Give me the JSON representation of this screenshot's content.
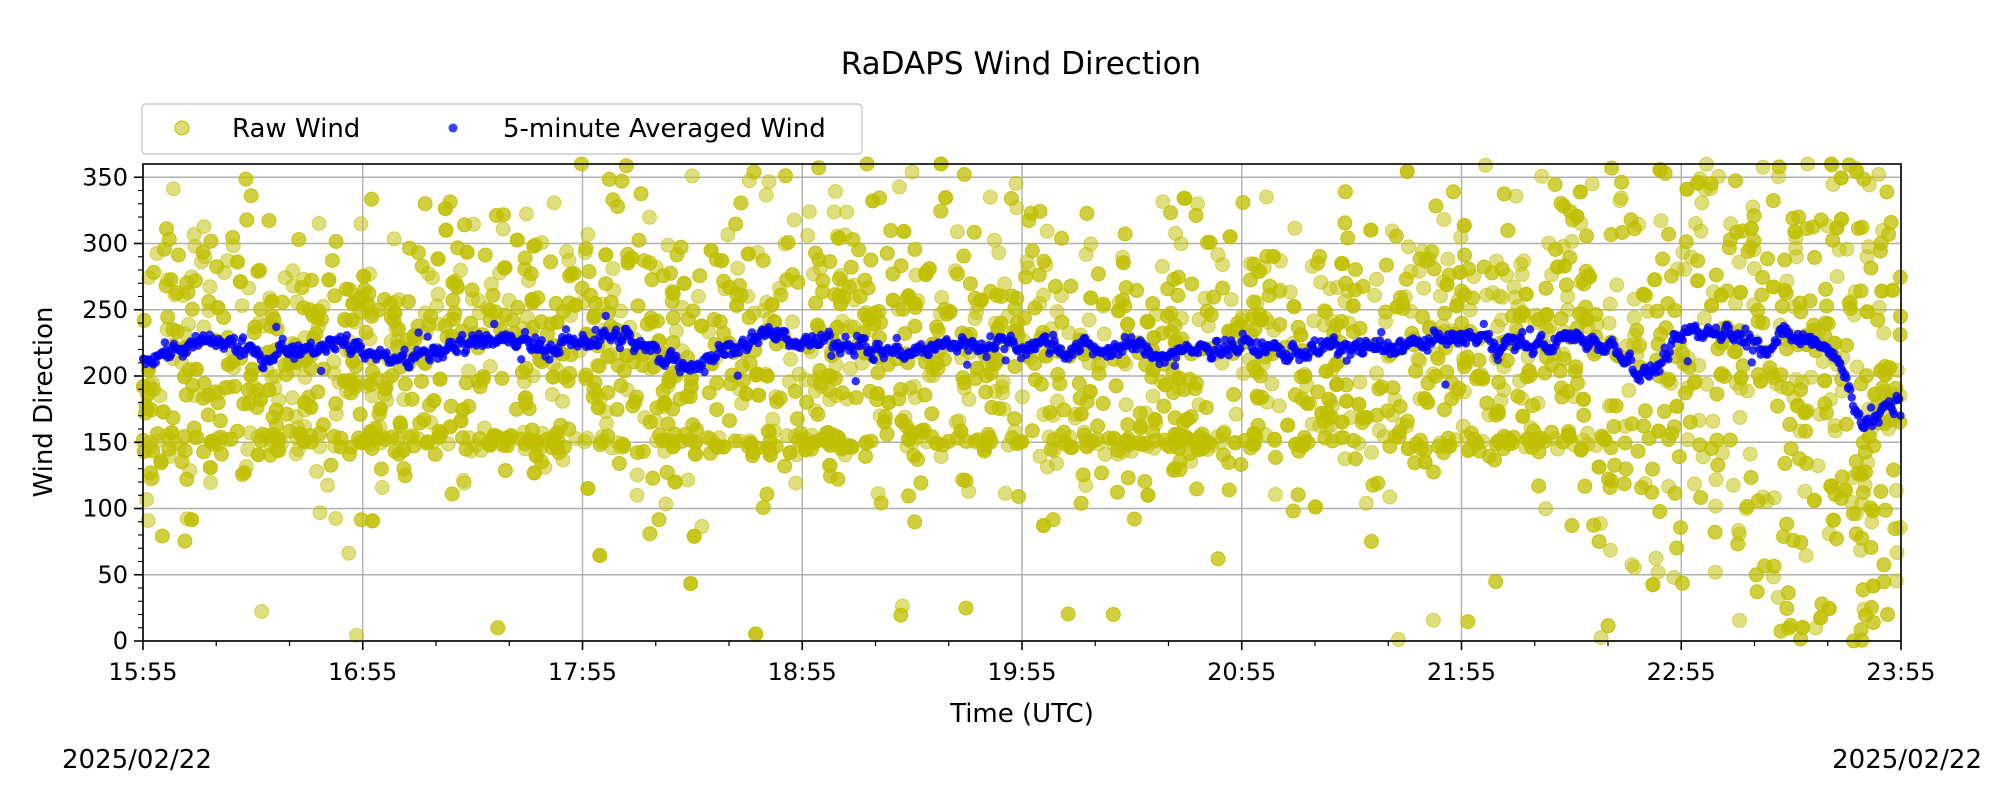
{
  "chart_data": {
    "type": "scatter",
    "title": "RaDAPS Wind Direction",
    "xlabel": "Time (UTC)",
    "ylabel": "Wind Direction",
    "x_ticks": [
      "15:55",
      "16:55",
      "17:55",
      "18:55",
      "19:55",
      "20:55",
      "21:55",
      "22:55",
      "23:55"
    ],
    "xlim": [
      "15:55",
      "23:55"
    ],
    "ylim": [
      0,
      360
    ],
    "y_ticks": [
      0,
      50,
      100,
      150,
      200,
      250,
      300,
      350
    ],
    "grid": true,
    "legend": {
      "placement": "top-left",
      "columns": 2
    },
    "start_date": "2025/02/22",
    "end_date": "2025/02/22",
    "series": [
      {
        "name": "Raw Wind",
        "color": "#bfbf00",
        "marker": "circle",
        "opacity": 0.55
      },
      {
        "name": "5-minute Averaged Wind",
        "color": "#0000ff",
        "marker": "circle",
        "opacity": 0.75,
        "x": [
          "15:55",
          "16:05",
          "16:15",
          "16:25",
          "16:35",
          "16:45",
          "16:55",
          "17:05",
          "17:15",
          "17:25",
          "17:35",
          "17:45",
          "17:55",
          "18:05",
          "18:15",
          "18:25",
          "18:35",
          "18:45",
          "18:55",
          "19:05",
          "19:15",
          "19:25",
          "19:35",
          "19:45",
          "19:55",
          "20:05",
          "20:15",
          "20:25",
          "20:35",
          "20:45",
          "20:55",
          "21:05",
          "21:15",
          "21:25",
          "21:35",
          "21:45",
          "21:55",
          "22:05",
          "22:15",
          "22:25",
          "22:35",
          "22:45",
          "22:55",
          "23:05",
          "23:15",
          "23:25",
          "23:35",
          "23:45",
          "23:55"
        ],
        "y": [
          215,
          220,
          225,
          215,
          222,
          226,
          220,
          210,
          218,
          230,
          225,
          222,
          228,
          230,
          215,
          210,
          222,
          230,
          225,
          226,
          220,
          218,
          223,
          225,
          225,
          222,
          220,
          222,
          215,
          222,
          224,
          218,
          222,
          220,
          222,
          225,
          228,
          225,
          222,
          230,
          225,
          200,
          230,
          235,
          225,
          230,
          225,
          160,
          185
        ]
      }
    ]
  }
}
